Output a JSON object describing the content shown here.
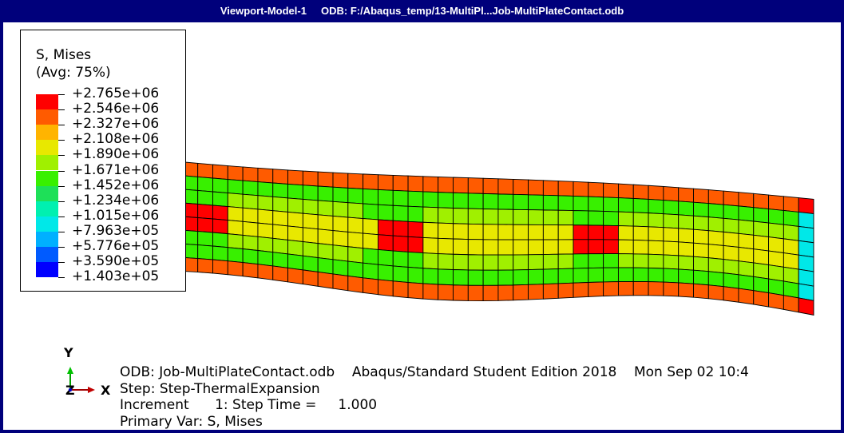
{
  "window": {
    "viewport_name": "Viewport-Model-1",
    "odb_label": "ODB: F:/Abaqus_temp/13-MultiPl...Job-MultiPlateContact.odb"
  },
  "legend": {
    "title": "S, Mises",
    "subtitle": "(Avg: 75%)",
    "values": [
      "+2.765e+06",
      "+2.546e+06",
      "+2.327e+06",
      "+2.108e+06",
      "+1.890e+06",
      "+1.671e+06",
      "+1.452e+06",
      "+1.234e+06",
      "+1.015e+06",
      "+7.963e+05",
      "+5.776e+05",
      "+3.590e+05",
      "+1.403e+05"
    ],
    "colors": [
      "#ff0000",
      "#ff5b00",
      "#ffb400",
      "#e8e800",
      "#a0f000",
      "#38f000",
      "#1ee058",
      "#00f0b0",
      "#00e8e8",
      "#00b0ff",
      "#005bff",
      "#0000ff"
    ]
  },
  "triad": {
    "y_label": "Y",
    "x_label": "X",
    "z_label": "Z"
  },
  "info": {
    "line1": "ODB: Job-MultiPlateContact.odb    Abaqus/Standard Student Edition 2018    Mon Sep 02 10:4",
    "line2": "Step: Step-ThermalExpansion",
    "line3": "Increment      1: Step Time =     1.000",
    "line4": "Primary Var: S, Mises"
  }
}
